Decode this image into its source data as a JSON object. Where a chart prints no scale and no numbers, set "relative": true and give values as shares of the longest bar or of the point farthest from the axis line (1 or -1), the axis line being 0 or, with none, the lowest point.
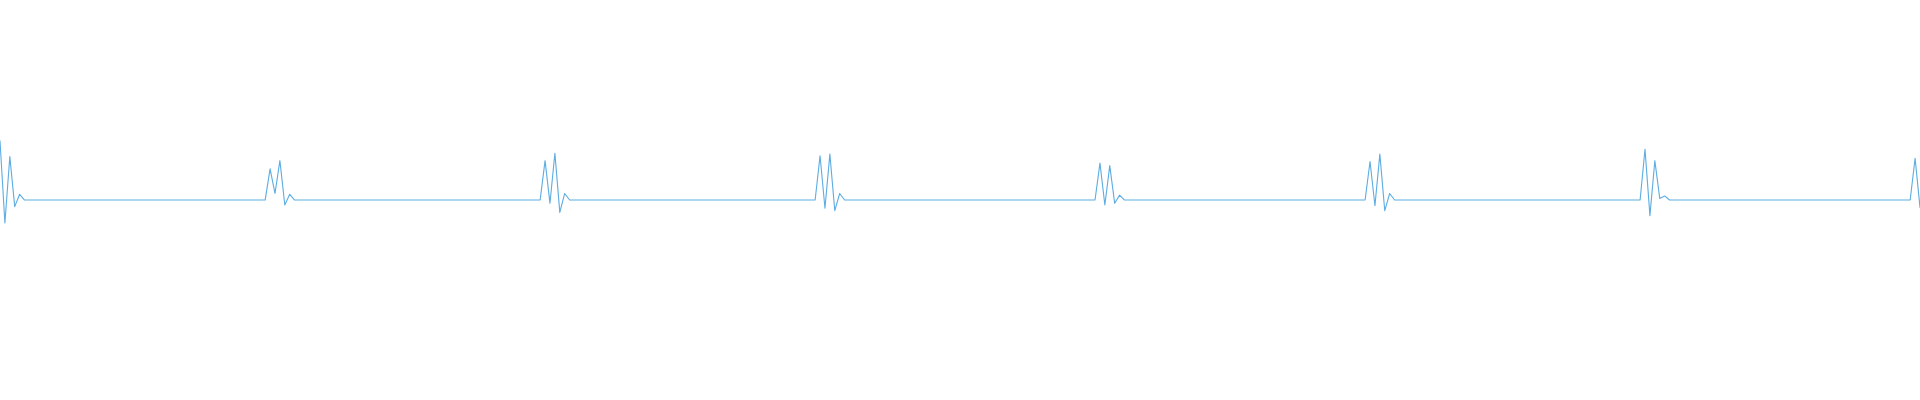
{
  "chart_data": {
    "type": "line",
    "relative": true,
    "color": "#5dade2",
    "marker": "none",
    "line_style": "solid",
    "tick_labels": false,
    "categories": [
      null,
      null,
      null,
      null,
      null,
      null,
      null,
      null,
      null,
      null,
      null,
      null,
      null,
      null,
      null,
      null,
      null,
      null,
      null,
      null,
      null,
      null,
      null,
      null,
      null,
      null,
      null,
      null,
      null,
      null,
      null,
      null,
      null,
      null,
      null,
      null,
      null,
      null,
      null,
      null,
      null,
      null,
      null,
      null,
      null,
      null,
      null,
      null,
      null,
      null,
      null,
      null,
      null,
      null,
      null,
      null,
      null,
      null,
      null,
      null,
      null,
      null,
      null,
      null,
      null,
      null,
      null,
      null,
      null,
      null,
      null,
      null,
      null,
      null,
      null,
      null,
      null,
      null,
      null,
      null,
      null,
      null,
      null,
      null,
      null,
      null,
      null,
      null,
      null,
      null,
      null,
      null,
      null,
      null,
      null,
      null,
      null,
      null,
      null,
      null,
      null,
      null,
      null,
      null,
      null,
      null,
      null,
      null,
      null,
      null,
      null,
      null,
      null,
      null,
      null,
      null,
      null,
      null,
      null,
      null,
      null,
      null,
      null,
      null,
      null,
      null,
      null,
      null,
      null,
      null,
      null,
      null,
      null,
      null,
      null,
      null,
      null,
      null,
      null,
      null,
      null,
      null,
      null,
      null,
      null,
      null,
      null,
      null,
      null,
      null,
      null,
      null,
      null,
      null,
      null,
      null,
      null,
      null,
      null,
      null,
      null,
      null,
      null,
      null,
      null,
      null,
      null,
      null,
      null,
      null,
      null,
      null,
      null,
      null,
      null,
      null,
      null,
      null,
      null,
      null,
      null,
      null,
      null,
      null,
      null,
      null,
      null,
      null,
      null,
      null,
      null,
      null,
      null,
      null,
      null,
      null,
      null,
      null,
      null,
      null,
      null,
      null,
      null,
      null,
      null,
      null,
      null,
      null,
      null,
      null,
      null,
      null,
      null,
      null,
      null,
      null,
      null,
      null,
      null,
      null,
      null,
      null,
      null,
      null,
      null,
      null,
      null,
      null,
      null,
      null,
      null,
      null,
      null,
      null,
      null,
      null,
      null,
      null,
      null,
      null,
      null,
      null,
      null,
      null,
      null,
      null,
      null,
      null,
      null,
      null,
      null,
      null,
      null,
      null,
      null,
      null,
      null,
      null,
      null,
      null,
      null,
      null,
      null,
      null,
      null,
      null,
      null,
      null,
      null,
      null,
      null,
      null,
      null,
      null,
      null,
      null,
      null,
      null,
      null,
      null,
      null,
      null,
      null,
      null,
      null,
      null,
      null,
      null,
      null,
      null,
      null,
      null,
      null,
      null,
      null,
      null,
      null,
      null,
      null,
      null,
      null,
      null,
      null,
      null,
      null,
      null,
      null,
      null,
      null,
      null,
      null,
      null,
      null,
      null,
      null,
      null,
      null,
      null,
      null,
      null,
      null,
      null,
      null,
      null,
      null,
      null,
      null,
      null,
      null,
      null,
      null,
      null,
      null,
      null,
      null,
      null,
      null,
      null,
      null,
      null,
      null,
      null,
      null,
      null,
      null,
      null,
      null,
      null,
      null,
      null,
      null,
      null,
      null,
      null,
      null,
      null,
      null,
      null,
      null,
      null,
      null,
      null,
      null,
      null,
      null,
      null,
      null,
      null,
      null,
      null,
      null,
      null,
      null,
      null,
      null,
      null,
      null,
      null,
      null,
      null,
      null,
      null,
      null,
      null,
      null,
      null,
      null,
      null,
      null,
      null,
      null,
      null
    ],
    "values": [
      1.0,
      0.0,
      0.81,
      0.2,
      0.35,
      0.28,
      0.28,
      0.28,
      0.28,
      0.28,
      0.28,
      0.28,
      0.28,
      0.28,
      0.28,
      0.28,
      0.28,
      0.28,
      0.28,
      0.28,
      0.28,
      0.28,
      0.28,
      0.28,
      0.28,
      0.28,
      0.28,
      0.28,
      0.28,
      0.28,
      0.28,
      0.28,
      0.28,
      0.28,
      0.28,
      0.28,
      0.28,
      0.28,
      0.28,
      0.28,
      0.28,
      0.28,
      0.28,
      0.28,
      0.28,
      0.28,
      0.28,
      0.28,
      0.28,
      0.28,
      0.28,
      0.28,
      0.28,
      0.28,
      0.28,
      0.66,
      0.36,
      0.76,
      0.22,
      0.35,
      0.28,
      0.28,
      0.28,
      0.28,
      0.28,
      0.28,
      0.28,
      0.28,
      0.28,
      0.28,
      0.28,
      0.28,
      0.28,
      0.28,
      0.28,
      0.28,
      0.28,
      0.28,
      0.28,
      0.28,
      0.28,
      0.28,
      0.28,
      0.28,
      0.28,
      0.28,
      0.28,
      0.28,
      0.28,
      0.28,
      0.28,
      0.28,
      0.28,
      0.28,
      0.28,
      0.28,
      0.28,
      0.28,
      0.28,
      0.28,
      0.28,
      0.28,
      0.28,
      0.28,
      0.28,
      0.28,
      0.28,
      0.28,
      0.28,
      0.28,
      0.28,
      0.76,
      0.24,
      0.85,
      0.13,
      0.36,
      0.28,
      0.28,
      0.28,
      0.28,
      0.28,
      0.28,
      0.28,
      0.28,
      0.28,
      0.28,
      0.28,
      0.28,
      0.28,
      0.28,
      0.28,
      0.28,
      0.28,
      0.28,
      0.28,
      0.28,
      0.28,
      0.28,
      0.28,
      0.28,
      0.28,
      0.28,
      0.28,
      0.28,
      0.28,
      0.28,
      0.28,
      0.28,
      0.28,
      0.28,
      0.28,
      0.28,
      0.28,
      0.28,
      0.28,
      0.28,
      0.28,
      0.28,
      0.28,
      0.28,
      0.28,
      0.28,
      0.28,
      0.28,
      0.28,
      0.28,
      0.28,
      0.82,
      0.18,
      0.84,
      0.15,
      0.36,
      0.28,
      0.28,
      0.28,
      0.28,
      0.28,
      0.28,
      0.28,
      0.28,
      0.28,
      0.28,
      0.28,
      0.28,
      0.28,
      0.28,
      0.28,
      0.28,
      0.28,
      0.28,
      0.28,
      0.28,
      0.28,
      0.28,
      0.28,
      0.28,
      0.28,
      0.28,
      0.28,
      0.28,
      0.28,
      0.28,
      0.28,
      0.28,
      0.28,
      0.28,
      0.28,
      0.28,
      0.28,
      0.28,
      0.28,
      0.28,
      0.28,
      0.28,
      0.28,
      0.28,
      0.28,
      0.28,
      0.28,
      0.28,
      0.28,
      0.28,
      0.28,
      0.28,
      0.73,
      0.22,
      0.7,
      0.24,
      0.34,
      0.28,
      0.28,
      0.28,
      0.28,
      0.28,
      0.28,
      0.28,
      0.28,
      0.28,
      0.28,
      0.28,
      0.28,
      0.28,
      0.28,
      0.28,
      0.28,
      0.28,
      0.28,
      0.28,
      0.28,
      0.28,
      0.28,
      0.28,
      0.28,
      0.28,
      0.28,
      0.28,
      0.28,
      0.28,
      0.28,
      0.28,
      0.28,
      0.28,
      0.28,
      0.28,
      0.28,
      0.28,
      0.28,
      0.28,
      0.28,
      0.28,
      0.28,
      0.28,
      0.28,
      0.28,
      0.28,
      0.28,
      0.28,
      0.28,
      0.28,
      0.75,
      0.21,
      0.84,
      0.15,
      0.36,
      0.28,
      0.28,
      0.28,
      0.28,
      0.28,
      0.28,
      0.28,
      0.28,
      0.28,
      0.28,
      0.28,
      0.28,
      0.28,
      0.28,
      0.28,
      0.28,
      0.28,
      0.28,
      0.28,
      0.28,
      0.28,
      0.28,
      0.28,
      0.28,
      0.28,
      0.28,
      0.28,
      0.28,
      0.28,
      0.28,
      0.28,
      0.28,
      0.28,
      0.28,
      0.28,
      0.28,
      0.28,
      0.28,
      0.28,
      0.28,
      0.28,
      0.28,
      0.28,
      0.28,
      0.28,
      0.28,
      0.28,
      0.28,
      0.28,
      0.28,
      0.28,
      0.9,
      0.09,
      0.76,
      0.3,
      0.33,
      0.28,
      0.28,
      0.28,
      0.28,
      0.28,
      0.28,
      0.28,
      0.28,
      0.28,
      0.28,
      0.28,
      0.28,
      0.28,
      0.28,
      0.28,
      0.28,
      0.28,
      0.28,
      0.28,
      0.28,
      0.28,
      0.28,
      0.28,
      0.28,
      0.28,
      0.28,
      0.28,
      0.28,
      0.28,
      0.28,
      0.28,
      0.28,
      0.28,
      0.28,
      0.28,
      0.28,
      0.28,
      0.28,
      0.28,
      0.28,
      0.28,
      0.28,
      0.28,
      0.28,
      0.28,
      0.28,
      0.28,
      0.28,
      0.28,
      0.28,
      0.79,
      0.19
    ]
  }
}
